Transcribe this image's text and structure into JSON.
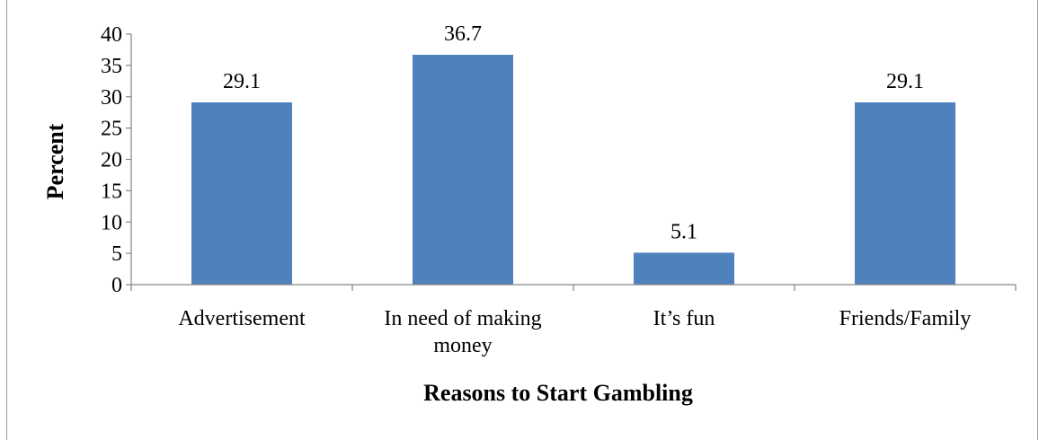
{
  "chart_data": {
    "type": "bar",
    "categories": [
      "Advertisement",
      "In need of making money",
      "It’s fun",
      "Friends/Family"
    ],
    "category_lines": [
      [
        "Advertisement"
      ],
      [
        "In need of making money",
        "money"
      ],
      [
        "It’s fun"
      ],
      [
        "Friends/Family"
      ]
    ],
    "category_line_text": [
      "Advertisement",
      "In need of making",
      "money",
      "It’s fun",
      "Friends/Family"
    ],
    "values": [
      29.1,
      36.7,
      5.1,
      29.1
    ],
    "data_labels": [
      "29.1",
      "36.7",
      "5.1",
      "29.1"
    ],
    "xlabel": "Reasons to Start Gambling",
    "ylabel": "Percent",
    "ylim": [
      0,
      40
    ],
    "yticks": [
      "0",
      "5",
      "10",
      "15",
      "20",
      "25",
      "30",
      "35",
      "40"
    ],
    "bar_color": "#4f81bd",
    "grid": false,
    "legend": "none"
  }
}
